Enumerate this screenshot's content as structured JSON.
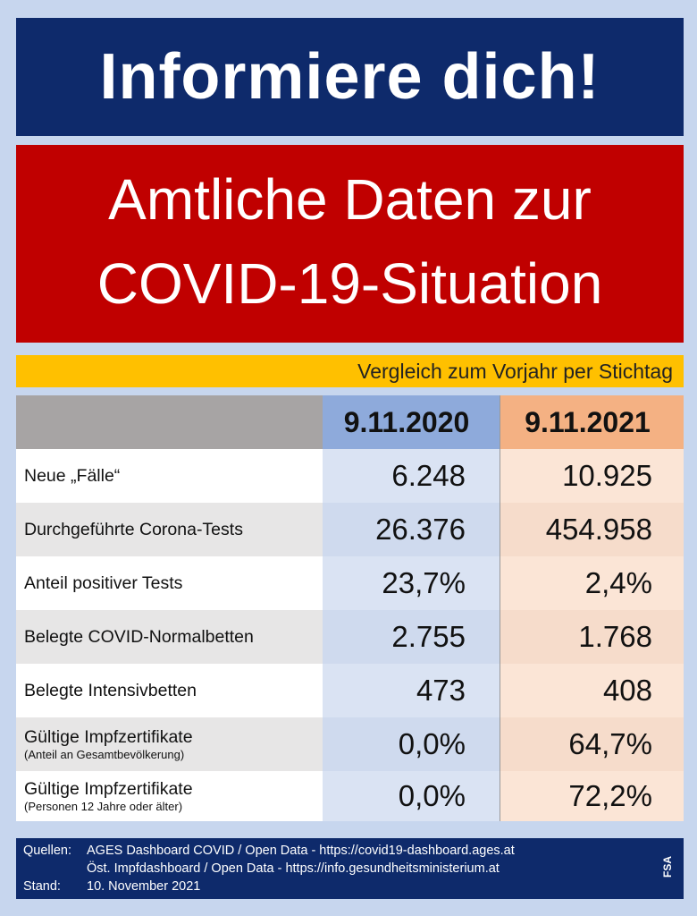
{
  "title": "Informiere dich!",
  "subtitle_line1": "Amtliche Daten zur",
  "subtitle_line2": "COVID-19-Situation",
  "comparison_label": "Vergleich zum Vorjahr per Stichtag",
  "table": {
    "headers": [
      "",
      "9.11.2020",
      "9.11.2021"
    ],
    "rows": [
      {
        "label": "Neue „Fälle“",
        "note": "",
        "v2020": "6.248",
        "v2021": "10.925"
      },
      {
        "label": "Durchgeführte Corona-Tests",
        "note": "",
        "v2020": "26.376",
        "v2021": "454.958"
      },
      {
        "label": "Anteil positiver Tests",
        "note": "",
        "v2020": "23,7%",
        "v2021": "2,4%"
      },
      {
        "label": "Belegte COVID-Normalbetten",
        "note": "",
        "v2020": "2.755",
        "v2021": "1.768"
      },
      {
        "label": "Belegte Intensivbetten",
        "note": "",
        "v2020": "473",
        "v2021": "408"
      },
      {
        "label": "Gültige Impfzertifikate",
        "note": "(Anteil an Gesamtbevölkerung)",
        "v2020": "0,0%",
        "v2021": "64,7%"
      },
      {
        "label": "Gültige Impfzertifikate",
        "note": "(Personen 12 Jahre oder älter)",
        "v2020": "0,0%",
        "v2021": "72,2%"
      }
    ]
  },
  "footer": {
    "sources_label": "Quellen:",
    "source1": "AGES Dashboard COVID / Open Data - https://covid19-dashboard.ages.at",
    "source2": "Öst. Impfdashboard / Open Data - https://info.gesundheitsministerium.at",
    "date_label": "Stand:",
    "date": "10. November 2021",
    "author": "FSA"
  }
}
